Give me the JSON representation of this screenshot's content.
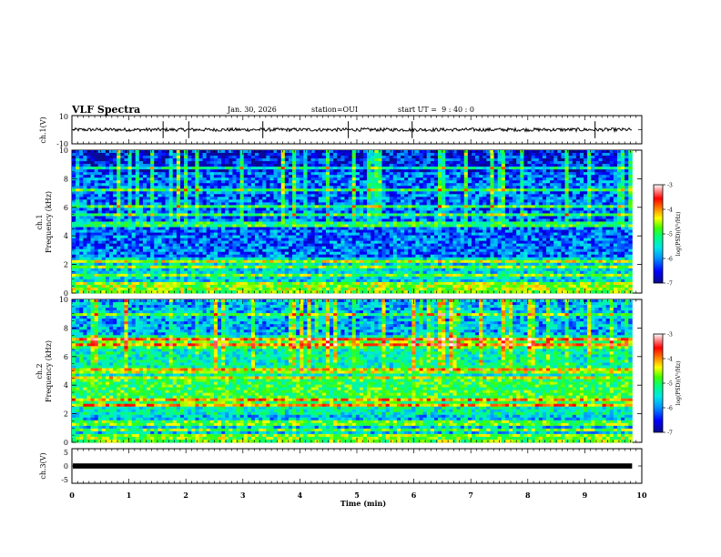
{
  "header": {
    "title": "VLF Spectra",
    "date": "Jan. 30, 2026",
    "station": "station=OUI",
    "start": "start UT =  9 : 40 : 0"
  },
  "chart_data": [
    {
      "id": "ch1-waveform",
      "type": "line",
      "ylabel": "ch.1(V)",
      "ylim": [
        -10,
        10
      ],
      "yticks": [
        10,
        -10
      ],
      "xlim": [
        0,
        10
      ],
      "series": [
        {
          "name": "ch.1 waveform",
          "baseline": 0,
          "noise_amplitude": 1.2,
          "spikes_min": [
            1.6,
            2.05,
            3.35,
            4.85,
            5.97,
            9.18
          ]
        }
      ]
    },
    {
      "id": "ch1-spectrogram",
      "type": "heatmap",
      "ylabel": "ch.1",
      "ylabel2": "Frequency (kHz)",
      "ylim": [
        0,
        10
      ],
      "yticks": [
        0,
        2,
        4,
        6,
        8,
        10
      ],
      "xlim": [
        0,
        9.83
      ],
      "colorbar": {
        "label": "log(PSD)(V²/Hz)",
        "range": [
          -7,
          -3
        ],
        "ticks": [
          -3,
          -4,
          -5,
          -6,
          -7
        ]
      },
      "bands_khz": [
        0.2,
        0.4,
        0.6,
        1.2,
        1.8,
        2.2,
        3.9,
        4.2,
        4.8,
        5.5,
        6.0,
        7.2,
        8.8
      ],
      "base_level": -6.3
    },
    {
      "id": "ch2-spectrogram",
      "type": "heatmap",
      "ylabel": "ch.2",
      "ylabel2": "Frequency (kHz)",
      "ylim": [
        0,
        10
      ],
      "yticks": [
        0,
        2,
        4,
        6,
        8,
        10
      ],
      "xlim": [
        0,
        9.83
      ],
      "colorbar": {
        "label": "log(PSD)(V²/Hz)",
        "range": [
          -7,
          -3
        ],
        "ticks": [
          -3,
          -4,
          -5,
          -6,
          -7
        ]
      },
      "bands_khz": [
        0.2,
        0.5,
        0.8,
        1.2,
        1.5,
        2.6,
        3.0,
        4.5,
        5.0,
        6.8,
        7.2,
        9.0
      ],
      "base_level": -5.6
    },
    {
      "id": "ch3-waveform",
      "type": "line",
      "ylabel": "ch.3(V)",
      "ylim": [
        -5,
        5
      ],
      "yticks": [
        5,
        0,
        -5
      ],
      "xlim": [
        0,
        10
      ],
      "series": [
        {
          "name": "ch.3 waveform",
          "baseline": 0,
          "band_half_width": 0.35
        }
      ]
    }
  ],
  "xaxis": {
    "label": "Time (min)",
    "ticks": [
      "0",
      "1",
      "2",
      "3",
      "4",
      "5",
      "6",
      "7",
      "8",
      "9",
      "10"
    ]
  },
  "colors": {
    "axis": "#000000",
    "colormap": [
      "#0a0a8c",
      "#0000ff",
      "#0090ff",
      "#00e6e6",
      "#00ff80",
      "#40ff00",
      "#ffff00",
      "#ff8000",
      "#ff0000",
      "#ff8c8c",
      "#ffffff"
    ]
  }
}
